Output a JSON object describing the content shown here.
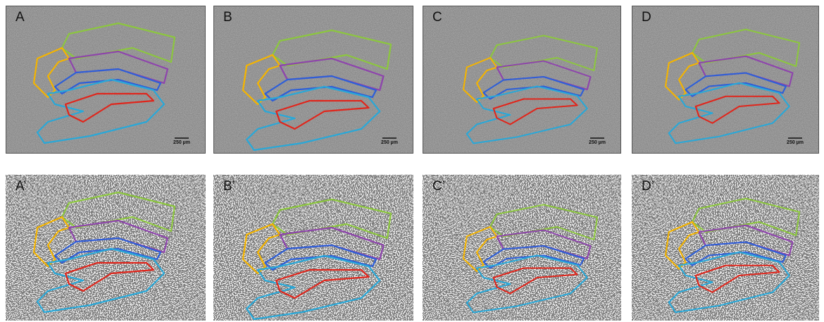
{
  "panels_top": [
    {
      "label": "A",
      "scale_bar": "250 µm"
    },
    {
      "label": "B",
      "scale_bar": "250 µm"
    },
    {
      "label": "C",
      "scale_bar": "250 µm"
    },
    {
      "label": "D",
      "scale_bar": "250 µm"
    }
  ],
  "panels_bottom": [
    {
      "label": "A’"
    },
    {
      "label": "B’"
    },
    {
      "label": "C’"
    },
    {
      "label": "D’"
    }
  ]
}
